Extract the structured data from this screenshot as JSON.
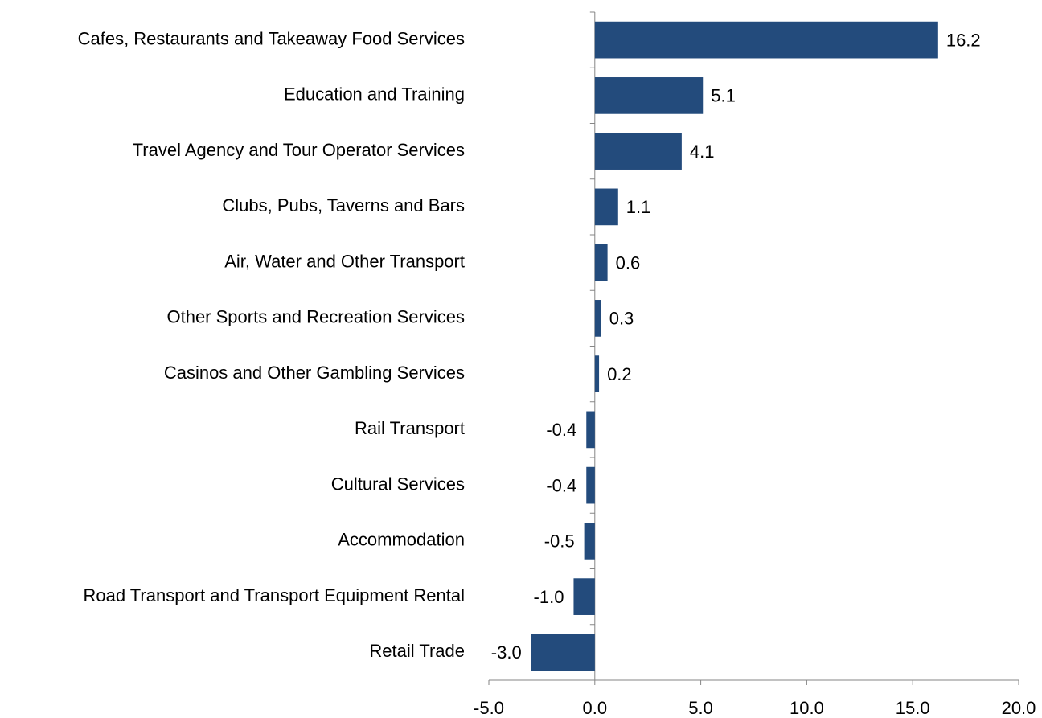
{
  "chart_data": {
    "type": "hbar",
    "categories": [
      "Cafes, Restaurants and Takeaway Food Services",
      "Education and Training",
      "Travel Agency and Tour Operator Services",
      "Clubs, Pubs, Taverns and Bars",
      "Air, Water and Other Transport",
      "Other Sports and Recreation Services",
      "Casinos and Other Gambling Services",
      "Rail Transport",
      "Cultural Services",
      "Accommodation",
      "Road Transport and Transport Equipment Rental",
      "Retail Trade"
    ],
    "values": [
      16.2,
      5.1,
      4.1,
      1.1,
      0.6,
      0.3,
      0.2,
      -0.4,
      -0.4,
      -0.5,
      -1.0,
      -3.0
    ],
    "value_labels": [
      "16.2",
      "5.1",
      "4.1",
      "1.1",
      "0.6",
      "0.3",
      "0.2",
      "-0.4",
      "-0.4",
      "-0.5",
      "-1.0",
      "-3.0"
    ],
    "color": "#234b7c",
    "xlim": [
      -5,
      20
    ],
    "xticks": [
      {
        "value": -5,
        "label": "-5.0"
      },
      {
        "value": 0,
        "label": "0.0"
      },
      {
        "value": 5,
        "label": "5.0"
      },
      {
        "value": 10,
        "label": "10.0"
      },
      {
        "value": 15,
        "label": "15.0"
      },
      {
        "value": 20,
        "label": "20.0"
      }
    ],
    "grid": false
  }
}
